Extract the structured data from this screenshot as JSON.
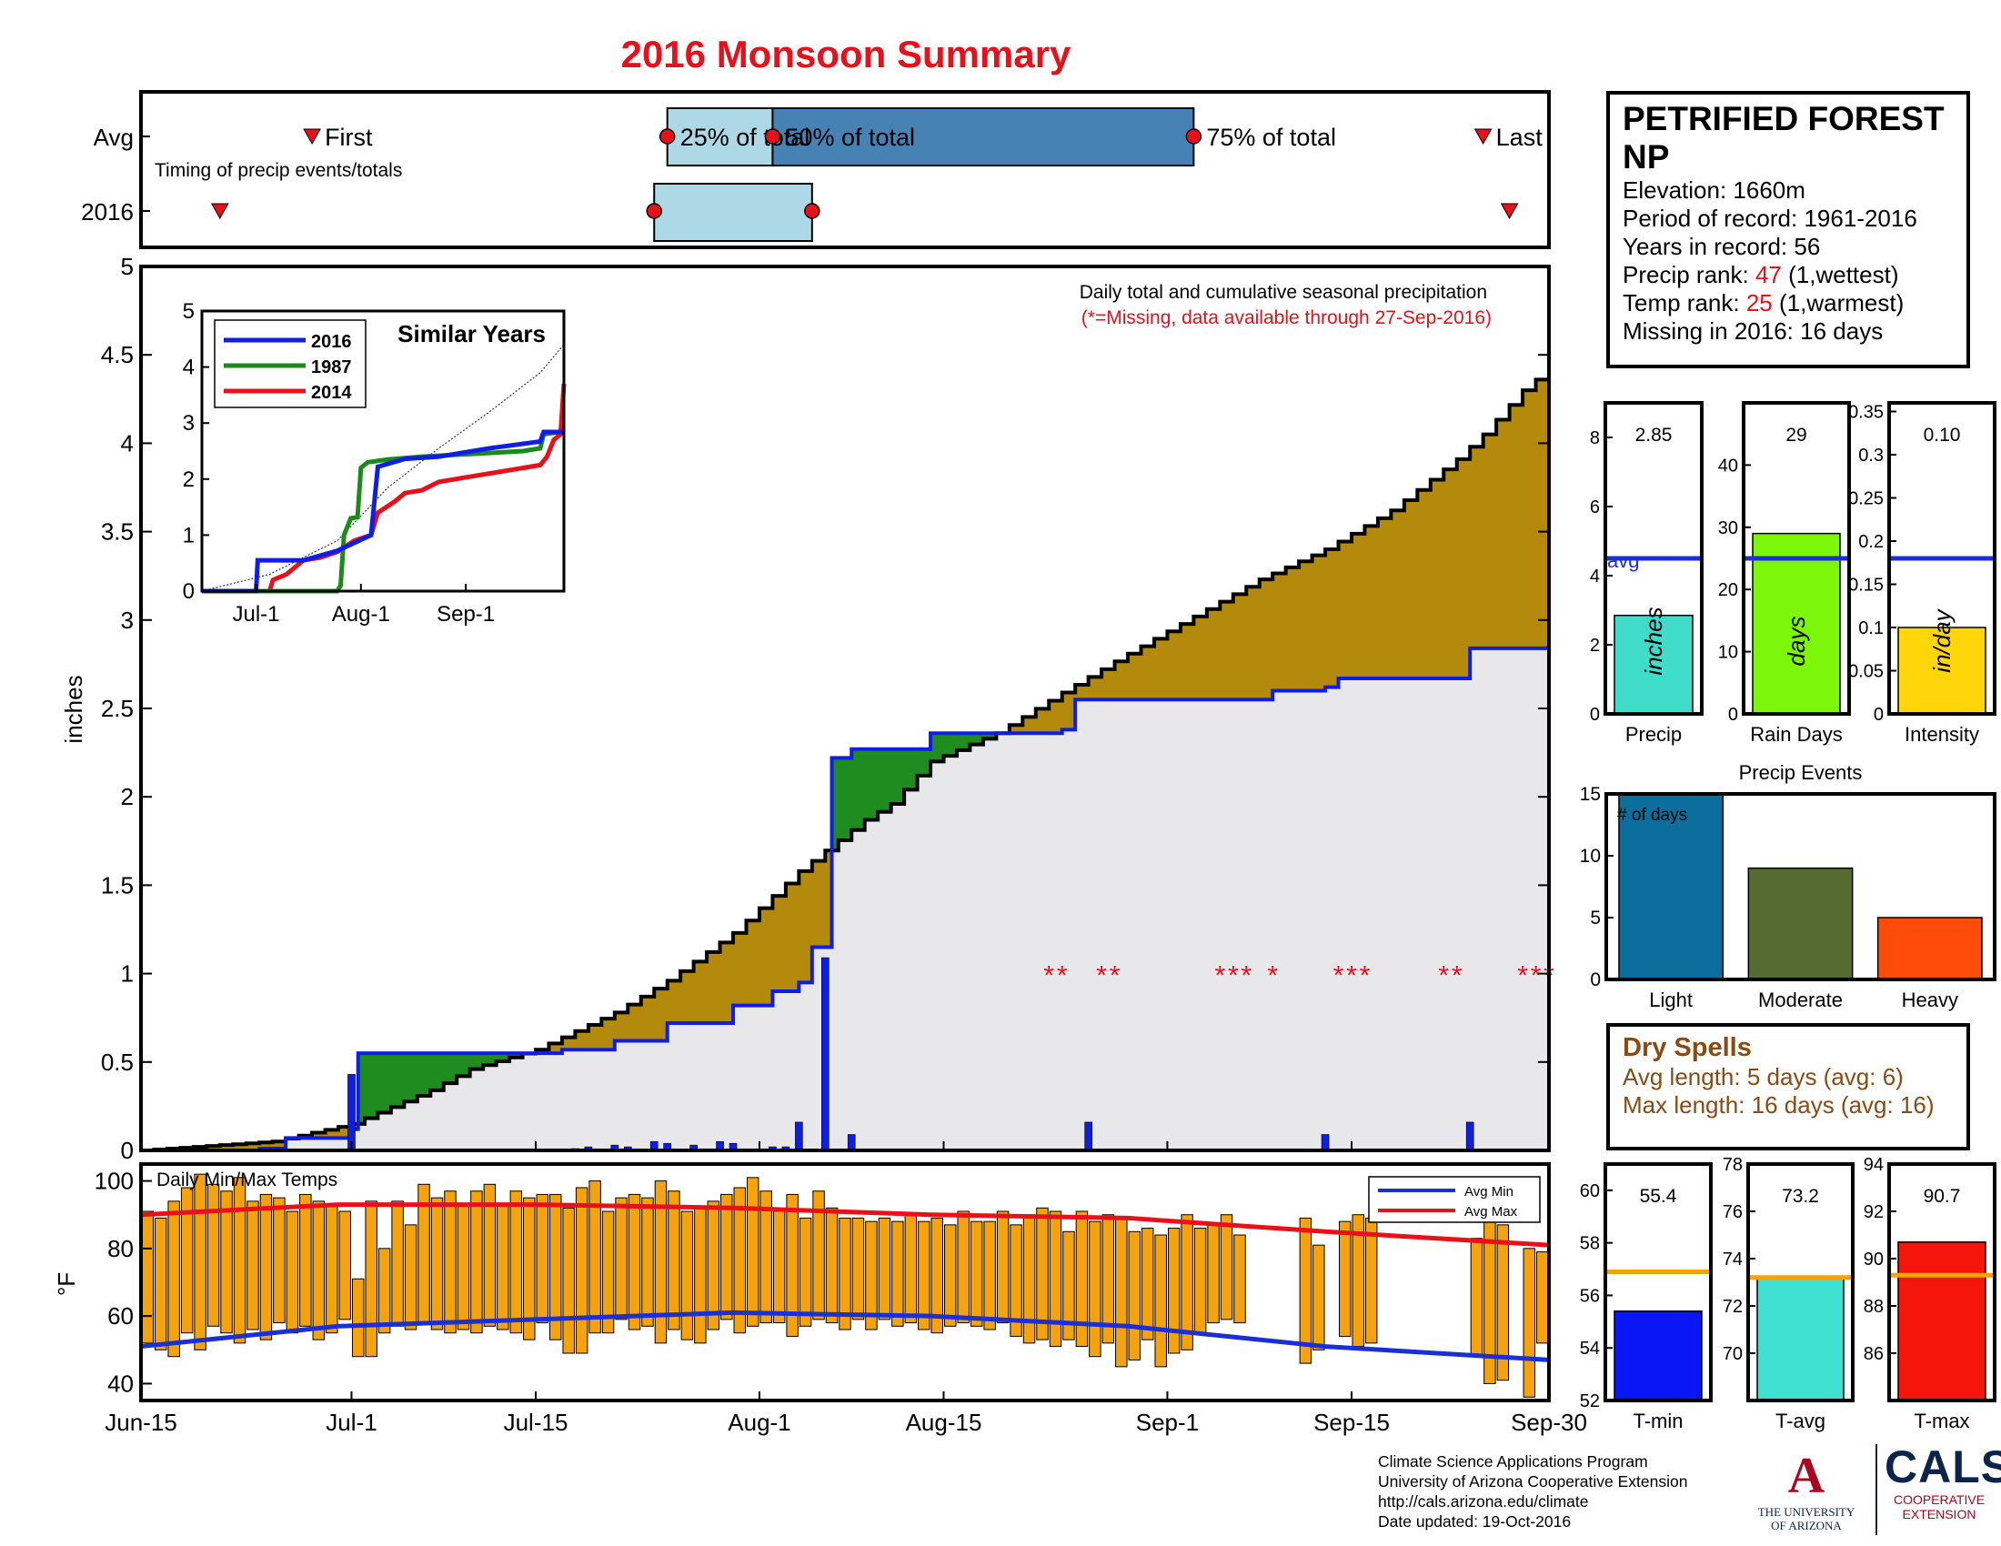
{
  "title": "2016 Monsoon Summary",
  "station": {
    "name": "PETRIFIED FOREST NP",
    "elevation_label": "Elevation:",
    "elevation": "1660m",
    "period_label": "Period of record:",
    "period": "1961-2016",
    "years_label": "Years in record:",
    "years": "56",
    "precip_rank_label": "Precip rank:",
    "precip_rank": "47",
    "precip_rank_note": "(1,wettest)",
    "temp_rank_label": "Temp rank:",
    "temp_rank": "25",
    "temp_rank_note": "(1,warmest)",
    "missing_label": "Missing in 2016:",
    "missing": "16 days"
  },
  "dry_spells": {
    "title": "Dry Spells",
    "avg_length": "Avg length: 5 days (avg: 6)",
    "max_length": "Max length: 16 days (avg: 16)"
  },
  "footer": {
    "line1": "Climate Science Applications Program",
    "line2": "University of Arizona Cooperative Extension",
    "line3": "http://cals.arizona.edu/climate",
    "line4": " Date updated: 19-Oct-2016"
  },
  "logos": {
    "ua_mark": "A",
    "ua_line1": "THE UNIVERSITY",
    "ua_line2": "OF ARIZONA",
    "cals": "CALS",
    "cals_line1": "COOPERATIVE",
    "cals_line2": "EXTENSION"
  },
  "colors": {
    "title_red": "#e8101a",
    "avg_fill": "#b38a0c",
    "wet_fill": "#1e8c1e",
    "base_fill": "#e8e7e9",
    "line_2016": "#0f1ee6",
    "bar_temp": "#f5a20f",
    "avg_min": "#1a2fd6",
    "avg_max": "#e8101a",
    "precip_bar": "#3fdcc9",
    "raindays_bar": "#7cf70a",
    "intensity_bar": "#ffd60a",
    "light": "#0b6e9c",
    "moderate": "#566b2f",
    "heavy": "#ff4c0a",
    "tmin": "#0a16f5",
    "tavg": "#3fe0d0",
    "tmax": "#f5150a",
    "avg_line": "#f5a20f"
  },
  "chart_data": [
    {
      "id": "timing",
      "type": "timeline",
      "title": "Timing of precip events/totals",
      "rows": [
        "Avg",
        "2016"
      ],
      "avg": {
        "first": "Jun-28",
        "p25": "Jul-25",
        "p50": "Aug-2",
        "p75": "Sep-3",
        "last": "Sep-25"
      },
      "y2016": {
        "first": "Jun-21",
        "p25": "Jul-24",
        "p75": "Aug-5",
        "last": "Sep-27"
      },
      "labels": {
        "first": "First",
        "p25": "25% of total",
        "p50": "50% of total",
        "p75": "75% of total",
        "last": "Last"
      }
    },
    {
      "id": "cumulative",
      "type": "area",
      "xlabel": "",
      "ylabel": "inches",
      "xlim": [
        0,
        107
      ],
      "ylim": [
        0,
        5
      ],
      "yticks": [
        "0",
        "0.5",
        "1",
        "1.5",
        "2",
        "2.5",
        "3",
        "3.5",
        "4",
        "4.5",
        "5"
      ],
      "annotation": "Daily total and cumulative seasonal precipitation",
      "missing_note": "(*=Missing, data available through 27-Sep-2016)",
      "avg_cum": [
        [
          0,
          0
        ],
        [
          10,
          0.05
        ],
        [
          16,
          0.15
        ],
        [
          22,
          0.34
        ],
        [
          25,
          0.46
        ],
        [
          30,
          0.57
        ],
        [
          36,
          0.78
        ],
        [
          40,
          0.96
        ],
        [
          45,
          1.23
        ],
        [
          50,
          1.58
        ],
        [
          55,
          1.87
        ],
        [
          57,
          1.96
        ],
        [
          60,
          2.2
        ],
        [
          65,
          2.36
        ],
        [
          70,
          2.59
        ],
        [
          75,
          2.81
        ],
        [
          80,
          3.02
        ],
        [
          85,
          3.23
        ],
        [
          90,
          3.4
        ],
        [
          95,
          3.62
        ],
        [
          100,
          3.91
        ],
        [
          102,
          4.05
        ],
        [
          105,
          4.3
        ],
        [
          107,
          4.42
        ]
      ],
      "y2016_cum": [
        [
          0,
          0
        ],
        [
          9,
          0.01
        ],
        [
          11,
          0.07
        ],
        [
          16,
          0.12
        ],
        [
          16.5,
          0.55
        ],
        [
          30,
          0.55
        ],
        [
          32,
          0.57
        ],
        [
          36,
          0.62
        ],
        [
          40,
          0.72
        ],
        [
          45,
          0.82
        ],
        [
          48,
          0.9
        ],
        [
          50,
          0.95
        ],
        [
          51,
          1.15
        ],
        [
          52,
          1.15
        ],
        [
          52.5,
          2.22
        ],
        [
          54,
          2.27
        ],
        [
          60,
          2.36
        ],
        [
          70,
          2.38
        ],
        [
          71,
          2.55
        ],
        [
          85,
          2.55
        ],
        [
          86,
          2.6
        ],
        [
          90,
          2.62
        ],
        [
          91,
          2.67
        ],
        [
          100,
          2.67
        ],
        [
          101,
          2.84
        ],
        [
          107,
          2.84
        ]
      ],
      "daily_bars": [
        [
          16,
          0.43
        ],
        [
          33,
          0.01
        ],
        [
          34,
          0.02
        ],
        [
          36,
          0.03
        ],
        [
          37,
          0.02
        ],
        [
          39,
          0.05
        ],
        [
          40,
          0.04
        ],
        [
          42,
          0.03
        ],
        [
          44,
          0.05
        ],
        [
          45,
          0.04
        ],
        [
          48,
          0.02
        ],
        [
          49,
          0.02
        ],
        [
          50,
          0.16
        ],
        [
          52,
          1.09
        ],
        [
          54,
          0.09
        ],
        [
          72,
          0.16
        ],
        [
          90,
          0.09
        ],
        [
          101,
          0.16
        ]
      ],
      "missing_days": [
        69,
        70,
        73,
        74,
        82,
        83,
        84,
        86,
        91,
        92,
        93,
        99,
        100,
        105,
        106,
        107
      ],
      "missing_marker": "*",
      "missing_y": 1
    },
    {
      "id": "similar_years",
      "type": "line",
      "title": "Similar Years",
      "xticks": [
        "Jul-1",
        "Aug-1",
        "Sep-1"
      ],
      "yticks": [
        "0",
        "1",
        "2",
        "3",
        "4",
        "5"
      ],
      "ylim": [
        0,
        5
      ],
      "series": [
        {
          "name": "2016",
          "color": "#0f1ee6",
          "points": [
            [
              0,
              0
            ],
            [
              16,
              0
            ],
            [
              16.5,
              0.55
            ],
            [
              30,
              0.55
            ],
            [
              40,
              0.72
            ],
            [
              50,
              1.0
            ],
            [
              52,
              2.22
            ],
            [
              60,
              2.36
            ],
            [
              70,
              2.4
            ],
            [
              85,
              2.55
            ],
            [
              100,
              2.67
            ],
            [
              101,
              2.84
            ],
            [
              107,
              2.84
            ]
          ]
        },
        {
          "name": "1987",
          "color": "#1a8a1a",
          "points": [
            [
              0,
              0
            ],
            [
              40,
              0
            ],
            [
              41,
              0.1
            ],
            [
              42,
              1.0
            ],
            [
              44,
              1.3
            ],
            [
              46,
              1.32
            ],
            [
              47,
              2.2
            ],
            [
              49,
              2.3
            ],
            [
              55,
              2.35
            ],
            [
              65,
              2.4
            ],
            [
              80,
              2.45
            ],
            [
              95,
              2.5
            ],
            [
              100,
              2.55
            ],
            [
              101,
              2.8
            ],
            [
              107,
              2.85
            ]
          ]
        },
        {
          "name": "2014",
          "color": "#e8101a",
          "points": [
            [
              0,
              0
            ],
            [
              20,
              0
            ],
            [
              21,
              0.2
            ],
            [
              25,
              0.3
            ],
            [
              30,
              0.55
            ],
            [
              35,
              0.6
            ],
            [
              40,
              0.7
            ],
            [
              45,
              0.9
            ],
            [
              50,
              1.0
            ],
            [
              52,
              1.4
            ],
            [
              57,
              1.6
            ],
            [
              60,
              1.75
            ],
            [
              65,
              1.8
            ],
            [
              70,
              1.95
            ],
            [
              75,
              2.0
            ],
            [
              80,
              2.05
            ],
            [
              85,
              2.1
            ],
            [
              90,
              2.15
            ],
            [
              95,
              2.2
            ],
            [
              100,
              2.25
            ],
            [
              102,
              2.4
            ],
            [
              104,
              2.7
            ],
            [
              106,
              2.8
            ],
            [
              107,
              3.7
            ]
          ]
        }
      ],
      "avg_dotted": [
        [
          0,
          0
        ],
        [
          20,
          0.3
        ],
        [
          40,
          0.9
        ],
        [
          55,
          1.85
        ],
        [
          70,
          2.55
        ],
        [
          85,
          3.2
        ],
        [
          100,
          3.9
        ],
        [
          107,
          4.4
        ]
      ]
    },
    {
      "id": "seasonal_bars",
      "type": "bar",
      "panels": [
        {
          "name": "Precip",
          "value": 2.85,
          "value_label": "2.85",
          "avg": 4.5,
          "avg_label": "avg",
          "unit": "inches",
          "ylim": [
            0,
            9
          ],
          "yticks": [
            "0",
            "2",
            "4",
            "6",
            "8"
          ]
        },
        {
          "name": "Rain Days",
          "value": 29,
          "value_label": "29",
          "avg": 25,
          "unit": "days",
          "ylim": [
            0,
            50
          ],
          "yticks": [
            "0",
            "10",
            "20",
            "30",
            "40"
          ]
        },
        {
          "name": "Intensity",
          "value": 0.1,
          "value_label": "0.10",
          "avg": 0.18,
          "unit": "in/day",
          "ylim": [
            0,
            0.36
          ],
          "yticks": [
            "0",
            "0.05",
            "0.1",
            "0.15",
            "0.2",
            "0.25",
            "0.3",
            "0.35"
          ]
        }
      ]
    },
    {
      "id": "precip_events",
      "type": "bar",
      "title": "Precip Events",
      "annotation": "# of days",
      "categories": [
        "Light",
        "Moderate",
        "Heavy"
      ],
      "values": [
        15,
        9,
        5
      ],
      "ylim": [
        0,
        15
      ],
      "yticks": [
        "0",
        "5",
        "10",
        "15"
      ]
    },
    {
      "id": "temps",
      "type": "bar",
      "title": "Daily Min/Max Temps",
      "ylabel": "°F",
      "ylim": [
        35,
        105
      ],
      "yticks": [
        "40",
        "60",
        "80",
        "100"
      ],
      "xticks": [
        "Jun-15",
        "Jul-1",
        "Jul-15",
        "Aug-1",
        "Aug-15",
        "Sep-1",
        "Sep-15",
        "Sep-30"
      ],
      "legend": [
        "Avg Min",
        "Avg Max"
      ],
      "avg_min": [
        [
          0,
          51
        ],
        [
          15,
          57
        ],
        [
          30,
          59
        ],
        [
          45,
          61
        ],
        [
          60,
          60
        ],
        [
          75,
          57
        ],
        [
          90,
          51
        ],
        [
          107,
          47
        ]
      ],
      "avg_max": [
        [
          0,
          90
        ],
        [
          15,
          93
        ],
        [
          30,
          93
        ],
        [
          45,
          92
        ],
        [
          60,
          90
        ],
        [
          75,
          89
        ],
        [
          90,
          85
        ],
        [
          107,
          81
        ]
      ],
      "daily_max": [
        91,
        89,
        94,
        98,
        102,
        99,
        97,
        101,
        94,
        96,
        95,
        91,
        96,
        94,
        93,
        91,
        71,
        94,
        80,
        94,
        87,
        99,
        95,
        97,
        93,
        97,
        99,
        93,
        97,
        95,
        96,
        96,
        92,
        98,
        100,
        91,
        95,
        96,
        95,
        100,
        97,
        91,
        92,
        94,
        96,
        98,
        101,
        97,
        91,
        96,
        89,
        97,
        92,
        89,
        89,
        88,
        89,
        88,
        90,
        88,
        89,
        87,
        91,
        88,
        88,
        91,
        87,
        90,
        92,
        91,
        85,
        91,
        88,
        90,
        89,
        85,
        86,
        84,
        86,
        90,
        86,
        87,
        90,
        84,
        null,
        null,
        null,
        null,
        89,
        81,
        null,
        88,
        90,
        89,
        null,
        null,
        null,
        null,
        null,
        null,
        null,
        83,
        89,
        87,
        null,
        80,
        79
      ],
      "daily_min": [
        52,
        50,
        48,
        55,
        50,
        57,
        55,
        52,
        56,
        53,
        58,
        55,
        57,
        53,
        55,
        59,
        48,
        48,
        55,
        57,
        56,
        58,
        56,
        55,
        56,
        55,
        57,
        56,
        55,
        53,
        58,
        53,
        49,
        49,
        55,
        55,
        59,
        56,
        57,
        52,
        56,
        53,
        52,
        56,
        59,
        55,
        57,
        58,
        58,
        54,
        57,
        59,
        58,
        56,
        59,
        56,
        59,
        57,
        58,
        56,
        55,
        57,
        58,
        57,
        56,
        58,
        54,
        52,
        53,
        51,
        53,
        51,
        48,
        52,
        45,
        47,
        53,
        45,
        49,
        50,
        55,
        58,
        59,
        58,
        null,
        null,
        null,
        null,
        46,
        50,
        null,
        54,
        51,
        52,
        null,
        null,
        null,
        null,
        null,
        null,
        null,
        48,
        40,
        41,
        null,
        36,
        52
      ]
    },
    {
      "id": "temp_summary",
      "type": "bar",
      "panels": [
        {
          "name": "T-min",
          "value": 55.4,
          "value_label": "55.4",
          "avg": 56.9,
          "ylim": [
            52,
            61
          ],
          "yticks": [
            "52",
            "54",
            "56",
            "58",
            "60"
          ]
        },
        {
          "name": "T-avg",
          "value": 73.2,
          "value_label": "73.2",
          "avg": 73.2,
          "ylim": [
            68,
            78
          ],
          "yticks": [
            "70",
            "72",
            "74",
            "76",
            "78"
          ]
        },
        {
          "name": "T-max",
          "value": 90.7,
          "value_label": "90.7",
          "avg": 89.3,
          "ylim": [
            84,
            94
          ],
          "yticks": [
            "86",
            "88",
            "90",
            "92",
            "94"
          ]
        }
      ]
    }
  ]
}
